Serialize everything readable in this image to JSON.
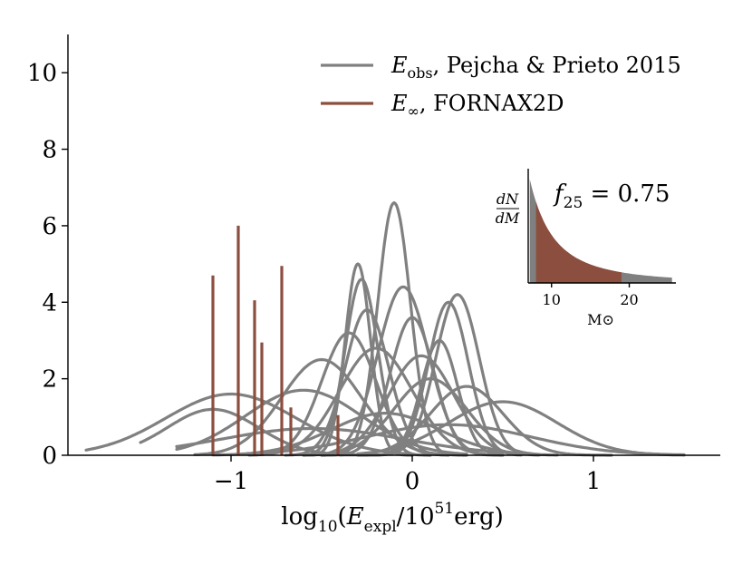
{
  "chart_data": [
    {
      "type": "line",
      "xlabel": {
        "base": "log",
        "base_sub": "10",
        "open": "(",
        "E": "E",
        "E_sub": "expl",
        "slash": "/10",
        "exp": "51",
        "unit": "erg)"
      },
      "ylabel": "",
      "xlim": [
        -1.9,
        1.7
      ],
      "ylim": [
        0,
        11
      ],
      "xticks": [
        -1,
        0,
        1
      ],
      "xtick_labels": [
        "−1",
        "0",
        "1"
      ],
      "yticks": [
        0,
        2,
        4,
        6,
        8,
        10
      ],
      "ytick_labels": [
        "0",
        "2",
        "4",
        "6",
        "8",
        "10"
      ],
      "legend": {
        "placement": "top-right",
        "entries": [
          {
            "symbol": "E",
            "sub": "obs",
            "text": ", Pejcha & Prieto 2015",
            "color": "#808080"
          },
          {
            "symbol": "E",
            "sub": "∞",
            "text": ", FORNAX2D",
            "color": "#8c4e3e"
          }
        ]
      },
      "series": [
        {
          "color": "#808080",
          "gaussians": [
            {
              "mu": -1.0,
              "sigma": 0.36,
              "amp": 1.6,
              "range": [
                -1.8,
                0.0
              ]
            },
            {
              "mu": -1.1,
              "sigma": 0.25,
              "amp": 1.2,
              "range": [
                -1.5,
                -0.2
              ]
            },
            {
              "mu": -0.5,
              "sigma": 0.22,
              "amp": 2.5,
              "range": [
                -1.2,
                0.2
              ]
            },
            {
              "mu": -0.6,
              "sigma": 0.32,
              "amp": 1.7,
              "range": [
                -1.3,
                0.3
              ]
            },
            {
              "mu": -0.55,
              "sigma": 0.5,
              "amp": 0.7,
              "range": [
                -1.3,
                0.6
              ]
            },
            {
              "mu": -0.3,
              "sigma": 0.07,
              "amp": 5.0,
              "range": [
                -0.6,
                0.0
              ]
            },
            {
              "mu": -0.28,
              "sigma": 0.09,
              "amp": 4.6,
              "range": [
                -0.6,
                0.1
              ]
            },
            {
              "mu": -0.25,
              "sigma": 0.12,
              "amp": 3.8,
              "range": [
                -0.7,
                0.2
              ]
            },
            {
              "mu": -0.35,
              "sigma": 0.15,
              "amp": 3.2,
              "range": [
                -0.9,
                0.2
              ]
            },
            {
              "mu": -0.2,
              "sigma": 0.2,
              "amp": 2.8,
              "range": [
                -0.9,
                0.4
              ]
            },
            {
              "mu": -0.1,
              "sigma": 0.09,
              "amp": 6.6,
              "range": [
                -0.5,
                0.3
              ]
            },
            {
              "mu": -0.05,
              "sigma": 0.14,
              "amp": 4.4,
              "range": [
                -0.6,
                0.4
              ]
            },
            {
              "mu": 0.0,
              "sigma": 0.12,
              "amp": 3.6,
              "range": [
                -0.5,
                0.5
              ]
            },
            {
              "mu": 0.05,
              "sigma": 0.18,
              "amp": 2.6,
              "range": [
                -0.6,
                0.6
              ]
            },
            {
              "mu": 0.15,
              "sigma": 0.1,
              "amp": 3.0,
              "range": [
                -0.3,
                0.5
              ]
            },
            {
              "mu": 0.2,
              "sigma": 0.11,
              "amp": 4.0,
              "range": [
                -0.2,
                0.6
              ]
            },
            {
              "mu": 0.25,
              "sigma": 0.12,
              "amp": 4.2,
              "range": [
                -0.2,
                0.7
              ]
            },
            {
              "mu": 0.1,
              "sigma": 0.2,
              "amp": 2.0,
              "range": [
                -0.6,
                0.8
              ]
            },
            {
              "mu": 0.3,
              "sigma": 0.2,
              "amp": 1.8,
              "range": [
                -0.4,
                1.1
              ]
            },
            {
              "mu": 0.5,
              "sigma": 0.3,
              "amp": 1.4,
              "range": [
                -0.3,
                1.5
              ]
            },
            {
              "mu": 0.2,
              "sigma": 0.45,
              "amp": 0.8,
              "range": [
                -0.7,
                1.5
              ]
            },
            {
              "mu": -0.15,
              "sigma": 0.3,
              "amp": 1.1,
              "range": [
                -1.1,
                0.7
              ]
            }
          ]
        },
        {
          "color": "#8c4e3e",
          "x": [
            -1.1,
            -0.96,
            -0.87,
            -0.83,
            -0.72,
            -0.67,
            -0.41
          ],
          "y": [
            4.7,
            6.0,
            4.05,
            2.95,
            4.95,
            1.25,
            1.05
          ]
        }
      ]
    },
    {
      "type": "area",
      "xlabel": "M⊙",
      "ylabel": {
        "num": "dN",
        "den": "dM"
      },
      "xticks": [
        10,
        20
      ],
      "xtick_labels": [
        "10",
        "20"
      ],
      "xlim": [
        7,
        26
      ],
      "ylim": [
        0,
        1.1
      ],
      "annotation": {
        "symbol": "f",
        "sub": "25",
        "text": " = 0.75"
      },
      "fill_colors": {
        "outer": "#808080",
        "inner": "#8c4e3e"
      },
      "fill_range": [
        8,
        19
      ],
      "curve": {
        "type": "power_law",
        "exponent": -2.35,
        "x0": 7.2
      }
    }
  ]
}
